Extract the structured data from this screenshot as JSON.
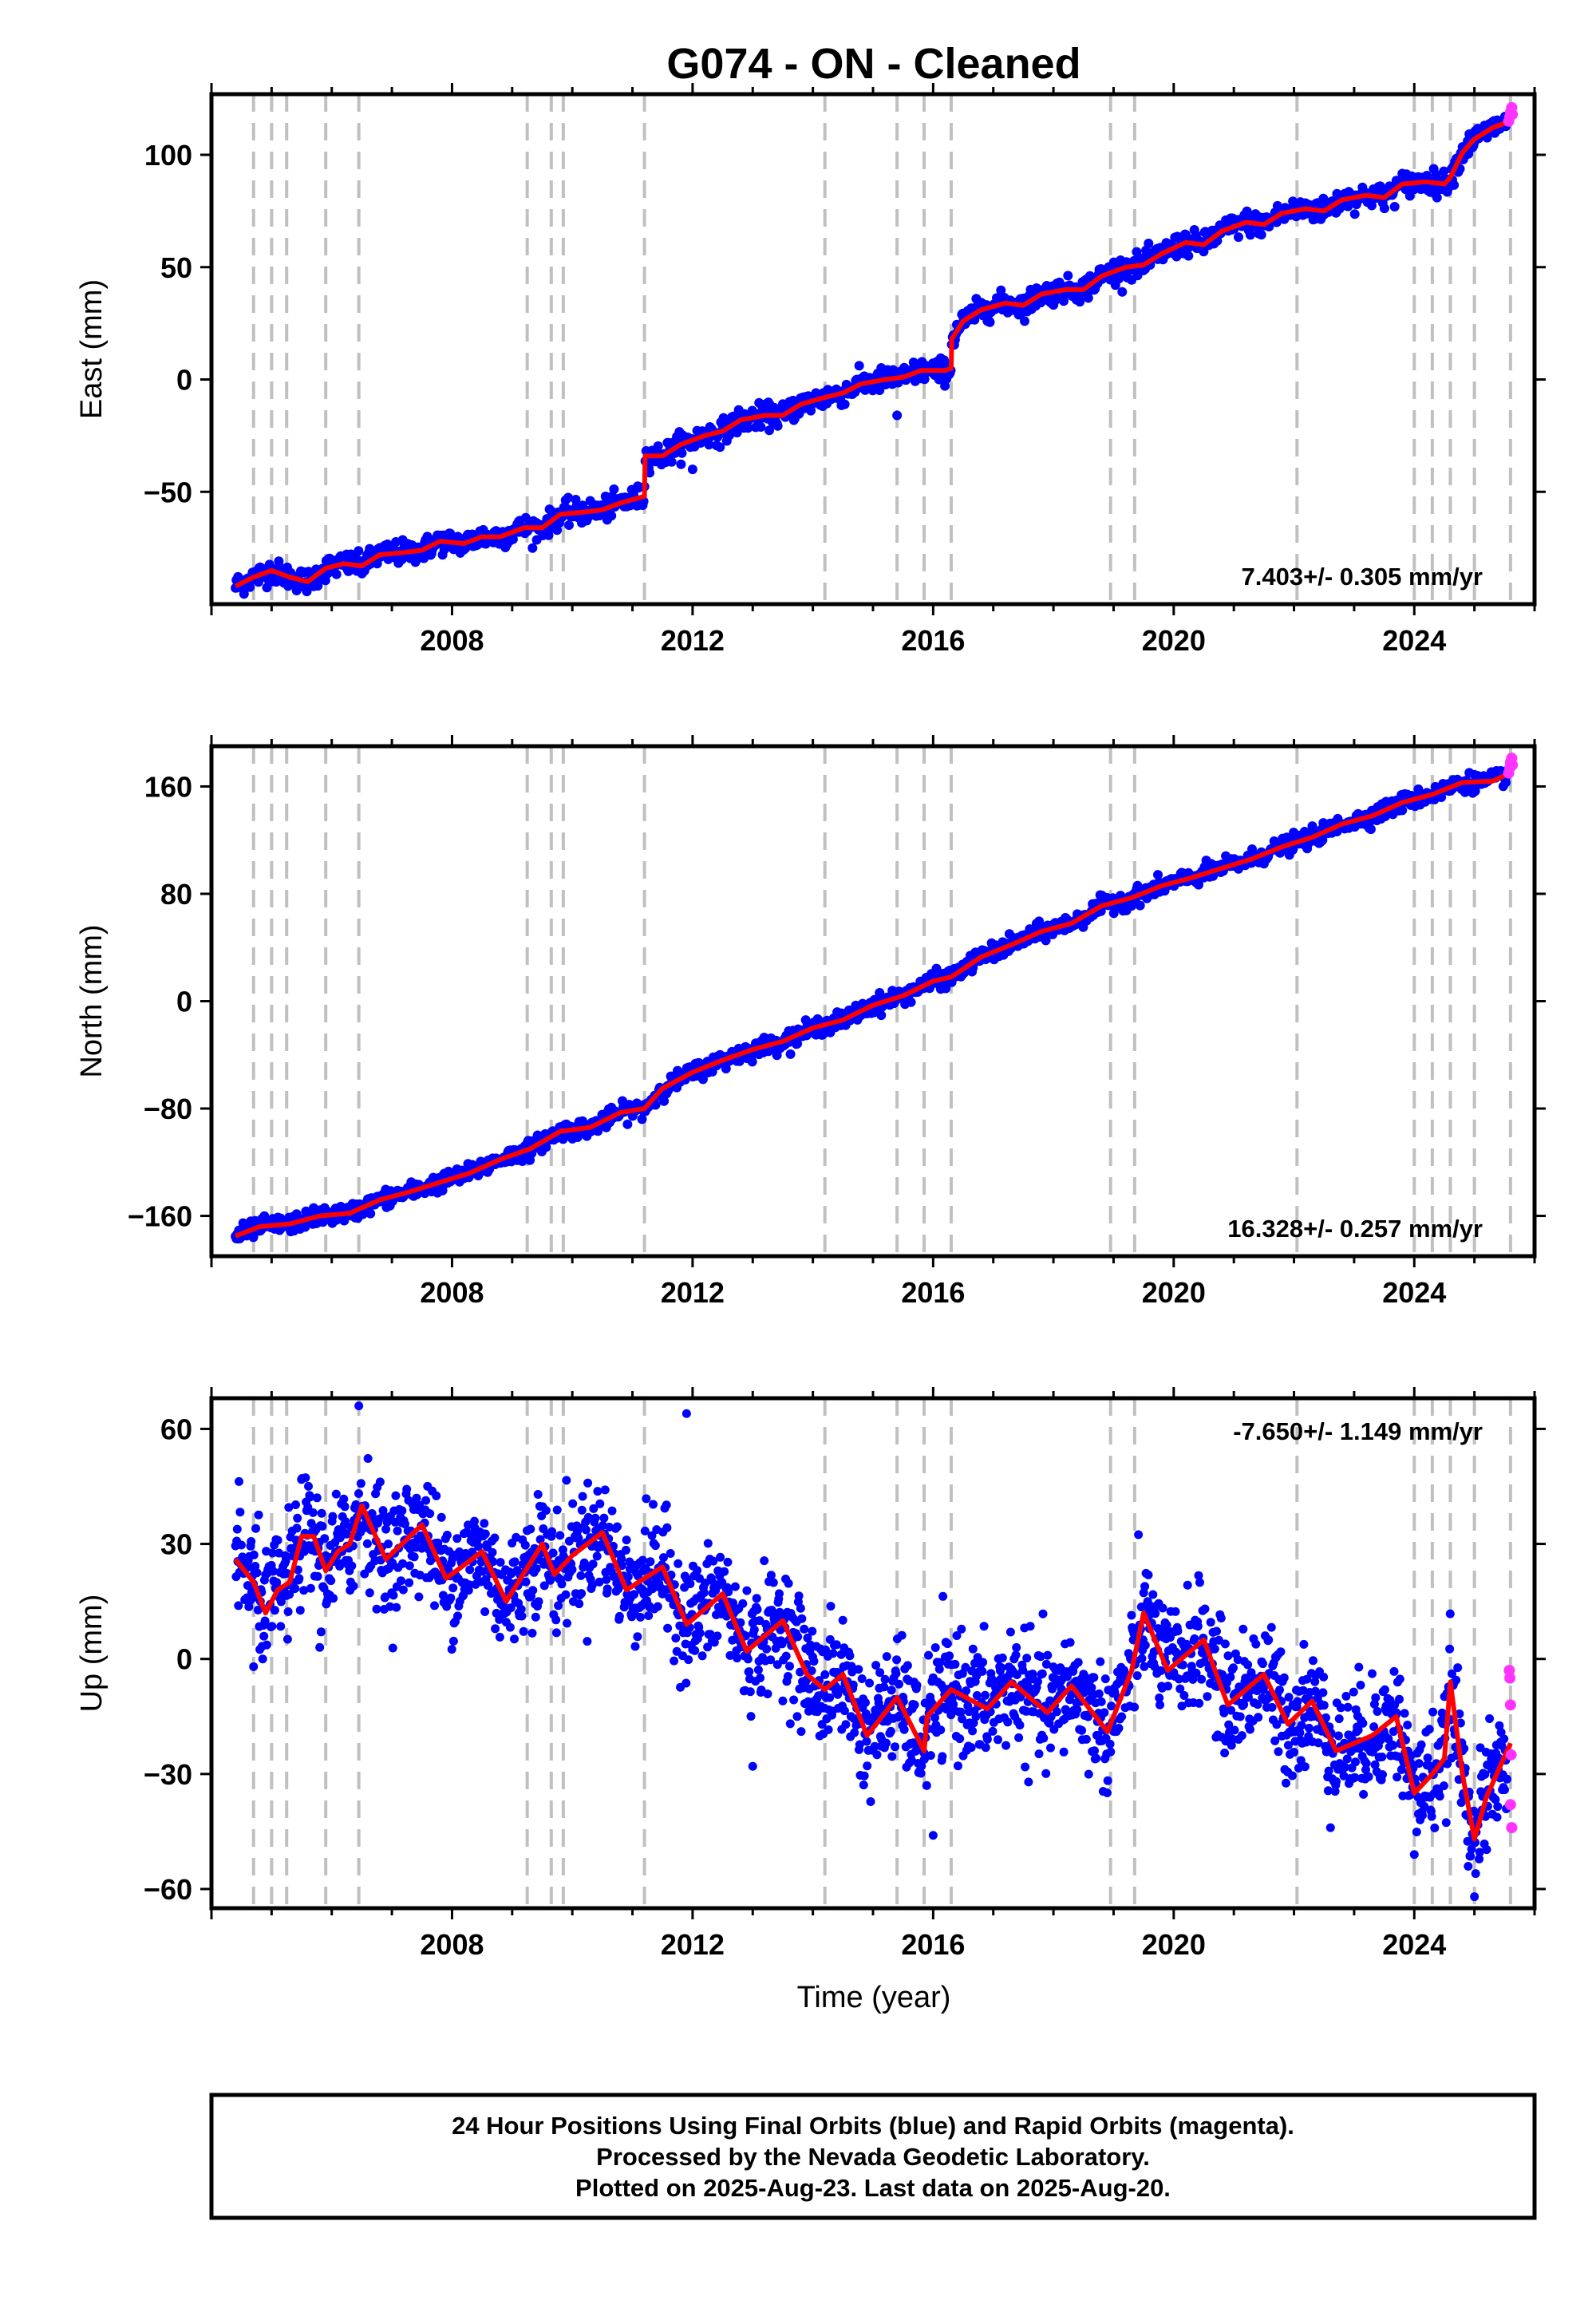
{
  "title": "G074  - ON - Cleaned",
  "xlabel": "Time (year)",
  "footer": [
    "24 Hour Positions Using Final Orbits (blue) and Rapid Orbits (magenta).",
    "Processed by the Nevada Geodetic Laboratory.",
    "Plotted on 2025-Aug-23. Last data on 2025-Aug-20."
  ],
  "colors": {
    "final": "#0000ff",
    "rapid": "#ff33ff",
    "model": "#ff0000",
    "event": "#c0c0c0"
  },
  "chart_data": [
    {
      "type": "scatter",
      "ylabel": "East (mm)",
      "rate": "7.403+/- 0.305 mm/yr",
      "rate_pos": "bottom-right",
      "xlim": [
        2004.0,
        2026.0
      ],
      "ylim": [
        -100,
        127
      ],
      "xticks": [
        2008,
        2012,
        2016,
        2020,
        2024
      ],
      "yticks": [
        100,
        50,
        0,
        -50
      ],
      "ytick_labels": [
        "100",
        "50",
        "0",
        "−50"
      ],
      "events": [
        2004.7,
        2005.0,
        2005.25,
        2005.9,
        2006.45,
        2009.25,
        2009.65,
        2009.85,
        2011.2,
        2014.2,
        2015.4,
        2015.85,
        2016.3,
        2018.95,
        2019.35,
        2022.05,
        2024.0,
        2024.3,
        2024.6,
        2025.0,
        2025.6
      ],
      "model": [
        [
          2004.4,
          -92
        ],
        [
          2004.7,
          -88
        ],
        [
          2005.0,
          -85
        ],
        [
          2005.3,
          -88
        ],
        [
          2005.6,
          -90
        ],
        [
          2005.9,
          -84
        ],
        [
          2006.2,
          -82
        ],
        [
          2006.5,
          -83
        ],
        [
          2006.8,
          -78
        ],
        [
          2007.2,
          -77
        ],
        [
          2007.5,
          -76
        ],
        [
          2007.8,
          -72
        ],
        [
          2008.2,
          -73
        ],
        [
          2008.5,
          -70
        ],
        [
          2008.8,
          -70
        ],
        [
          2009.2,
          -66
        ],
        [
          2009.5,
          -66
        ],
        [
          2009.8,
          -60
        ],
        [
          2010.2,
          -59
        ],
        [
          2010.5,
          -58
        ],
        [
          2010.8,
          -55
        ],
        [
          2011.2,
          -52
        ],
        [
          2011.21,
          -34
        ],
        [
          2011.5,
          -34
        ],
        [
          2011.8,
          -29
        ],
        [
          2012.2,
          -25
        ],
        [
          2012.5,
          -23
        ],
        [
          2012.8,
          -18
        ],
        [
          2013.2,
          -16
        ],
        [
          2013.5,
          -16
        ],
        [
          2013.8,
          -11
        ],
        [
          2014.2,
          -8
        ],
        [
          2014.5,
          -6
        ],
        [
          2014.8,
          -2
        ],
        [
          2015.2,
          0
        ],
        [
          2015.5,
          1
        ],
        [
          2015.8,
          4
        ],
        [
          2016.2,
          4
        ],
        [
          2016.3,
          5
        ],
        [
          2016.31,
          18
        ],
        [
          2016.5,
          26
        ],
        [
          2016.8,
          31
        ],
        [
          2017.2,
          34
        ],
        [
          2017.5,
          33
        ],
        [
          2017.8,
          38
        ],
        [
          2018.2,
          40
        ],
        [
          2018.5,
          40
        ],
        [
          2018.8,
          46
        ],
        [
          2019.2,
          50
        ],
        [
          2019.5,
          51
        ],
        [
          2019.8,
          56
        ],
        [
          2020.2,
          61
        ],
        [
          2020.5,
          60
        ],
        [
          2020.8,
          66
        ],
        [
          2021.2,
          70
        ],
        [
          2021.5,
          69
        ],
        [
          2021.8,
          74
        ],
        [
          2022.2,
          76
        ],
        [
          2022.5,
          75
        ],
        [
          2022.8,
          80
        ],
        [
          2023.2,
          82
        ],
        [
          2023.5,
          81
        ],
        [
          2023.8,
          87
        ],
        [
          2024.2,
          88
        ],
        [
          2024.5,
          87
        ],
        [
          2024.6,
          90
        ],
        [
          2024.8,
          101
        ],
        [
          2025.0,
          107
        ],
        [
          2025.3,
          112
        ],
        [
          2025.6,
          115
        ]
      ],
      "final": {
        "start": 2004.4,
        "end": 2025.55,
        "n": 1500,
        "scatter": 2.6,
        "outliers": [
          [
            2015.4,
            -16
          ],
          [
            2012.0,
            -40
          ]
        ]
      },
      "rapid": [
        [
          2025.57,
          115
        ],
        [
          2025.59,
          117
        ],
        [
          2025.6,
          119
        ],
        [
          2025.62,
          121
        ],
        [
          2025.63,
          118
        ]
      ]
    },
    {
      "type": "scatter",
      "ylabel": "North (mm)",
      "rate": "16.328+/- 0.257 mm/yr",
      "rate_pos": "bottom-right",
      "xlim": [
        2004.0,
        2026.0
      ],
      "ylim": [
        -190,
        190
      ],
      "xticks": [
        2008,
        2012,
        2016,
        2020,
        2024
      ],
      "yticks": [
        160,
        80,
        0,
        -80,
        -160
      ],
      "ytick_labels": [
        "160",
        "80",
        "0",
        "−80",
        "−160"
      ],
      "events": [
        2004.7,
        2005.0,
        2005.25,
        2005.9,
        2006.45,
        2009.25,
        2009.65,
        2009.85,
        2011.2,
        2014.2,
        2015.4,
        2015.85,
        2016.3,
        2018.95,
        2019.35,
        2022.05,
        2024.0,
        2024.3,
        2024.6,
        2025.0,
        2025.6
      ],
      "model": [
        [
          2004.4,
          -175
        ],
        [
          2004.8,
          -168
        ],
        [
          2005.3,
          -166
        ],
        [
          2005.8,
          -160
        ],
        [
          2006.3,
          -158
        ],
        [
          2006.8,
          -148
        ],
        [
          2007.3,
          -142
        ],
        [
          2007.8,
          -135
        ],
        [
          2008.3,
          -128
        ],
        [
          2008.8,
          -118
        ],
        [
          2009.3,
          -110
        ],
        [
          2009.8,
          -97
        ],
        [
          2010.3,
          -94
        ],
        [
          2010.8,
          -83
        ],
        [
          2011.2,
          -80
        ],
        [
          2011.5,
          -65
        ],
        [
          2012.0,
          -53
        ],
        [
          2012.5,
          -44
        ],
        [
          2013.0,
          -36
        ],
        [
          2013.5,
          -30
        ],
        [
          2014.0,
          -20
        ],
        [
          2014.5,
          -14
        ],
        [
          2015.0,
          -3
        ],
        [
          2015.5,
          4
        ],
        [
          2016.0,
          15
        ],
        [
          2016.3,
          18
        ],
        [
          2016.8,
          33
        ],
        [
          2017.3,
          42
        ],
        [
          2017.8,
          52
        ],
        [
          2018.3,
          58
        ],
        [
          2018.8,
          71
        ],
        [
          2019.3,
          77
        ],
        [
          2019.8,
          86
        ],
        [
          2020.3,
          92
        ],
        [
          2020.8,
          99
        ],
        [
          2021.3,
          106
        ],
        [
          2021.8,
          115
        ],
        [
          2022.3,
          122
        ],
        [
          2022.8,
          132
        ],
        [
          2023.3,
          138
        ],
        [
          2023.8,
          148
        ],
        [
          2024.3,
          154
        ],
        [
          2024.8,
          163
        ],
        [
          2025.3,
          164
        ],
        [
          2025.6,
          170
        ]
      ],
      "final": {
        "start": 2004.4,
        "end": 2025.55,
        "n": 1500,
        "scatter": 3.2,
        "outliers": []
      },
      "rapid": [
        [
          2025.57,
          170
        ],
        [
          2025.59,
          174
        ],
        [
          2025.6,
          178
        ],
        [
          2025.62,
          181
        ],
        [
          2025.63,
          176
        ]
      ]
    },
    {
      "type": "scatter",
      "ylabel": "Up (mm)",
      "rate": "-7.650+/- 1.149 mm/yr",
      "rate_pos": "top-right",
      "xlim": [
        2004.0,
        2026.0
      ],
      "ylim": [
        -65,
        68
      ],
      "xticks": [
        2008,
        2012,
        2016,
        2020,
        2024
      ],
      "yticks": [
        60,
        30,
        0,
        -30,
        -60
      ],
      "ytick_labels": [
        "60",
        "30",
        "0",
        "−30",
        "−60"
      ],
      "events": [
        2004.7,
        2005.0,
        2005.25,
        2005.9,
        2006.45,
        2009.25,
        2009.65,
        2009.85,
        2011.2,
        2014.2,
        2015.4,
        2015.85,
        2016.3,
        2018.95,
        2019.35,
        2022.05,
        2024.0,
        2024.3,
        2024.6,
        2025.0,
        2025.6
      ],
      "model": [
        [
          2004.4,
          26
        ],
        [
          2004.7,
          20
        ],
        [
          2004.9,
          12
        ],
        [
          2005.1,
          18
        ],
        [
          2005.3,
          20
        ],
        [
          2005.5,
          32
        ],
        [
          2005.7,
          32
        ],
        [
          2005.9,
          23
        ],
        [
          2006.1,
          28
        ],
        [
          2006.3,
          30
        ],
        [
          2006.5,
          40
        ],
        [
          2006.9,
          26
        ],
        [
          2007.5,
          35
        ],
        [
          2007.9,
          21
        ],
        [
          2008.5,
          28
        ],
        [
          2008.9,
          15
        ],
        [
          2009.5,
          30
        ],
        [
          2009.7,
          22
        ],
        [
          2010.0,
          27
        ],
        [
          2010.5,
          33
        ],
        [
          2010.9,
          18
        ],
        [
          2011.5,
          24
        ],
        [
          2011.9,
          9
        ],
        [
          2012.5,
          17
        ],
        [
          2012.9,
          2
        ],
        [
          2013.5,
          10
        ],
        [
          2013.9,
          -4
        ],
        [
          2014.2,
          -8
        ],
        [
          2014.5,
          -4
        ],
        [
          2014.9,
          -20
        ],
        [
          2015.4,
          -10
        ],
        [
          2015.85,
          -24
        ],
        [
          2015.9,
          -15
        ],
        [
          2016.3,
          -8
        ],
        [
          2016.9,
          -13
        ],
        [
          2017.3,
          -6
        ],
        [
          2017.9,
          -14
        ],
        [
          2018.3,
          -7
        ],
        [
          2018.9,
          -19
        ],
        [
          2019.3,
          -3
        ],
        [
          2019.5,
          12
        ],
        [
          2019.9,
          -3
        ],
        [
          2020.5,
          5
        ],
        [
          2020.9,
          -12
        ],
        [
          2021.5,
          -4
        ],
        [
          2021.9,
          -17
        ],
        [
          2022.3,
          -11
        ],
        [
          2022.7,
          -24
        ],
        [
          2023.3,
          -20
        ],
        [
          2023.7,
          -15
        ],
        [
          2024.0,
          -35
        ],
        [
          2024.3,
          -30
        ],
        [
          2024.5,
          -26
        ],
        [
          2024.6,
          -6
        ],
        [
          2024.8,
          -30
        ],
        [
          2025.0,
          -47
        ],
        [
          2025.2,
          -36
        ],
        [
          2025.4,
          -29
        ],
        [
          2025.6,
          -22
        ]
      ],
      "final": {
        "start": 2004.4,
        "end": 2025.55,
        "n": 2200,
        "scatter": 7.5,
        "outliers": [
          [
            2006.45,
            66
          ],
          [
            2011.9,
            64
          ],
          [
            2025.0,
            -62
          ],
          [
            2016.0,
            -46
          ],
          [
            2005.8,
            3
          ],
          [
            2004.7,
            -2
          ],
          [
            2013.0,
            -28
          ],
          [
            2024.0,
            -51
          ]
        ]
      },
      "rapid": [
        [
          2025.58,
          -3
        ],
        [
          2025.6,
          -12
        ],
        [
          2025.61,
          -25
        ],
        [
          2025.62,
          -44
        ],
        [
          2025.6,
          -38
        ],
        [
          2025.59,
          -5
        ]
      ]
    }
  ]
}
